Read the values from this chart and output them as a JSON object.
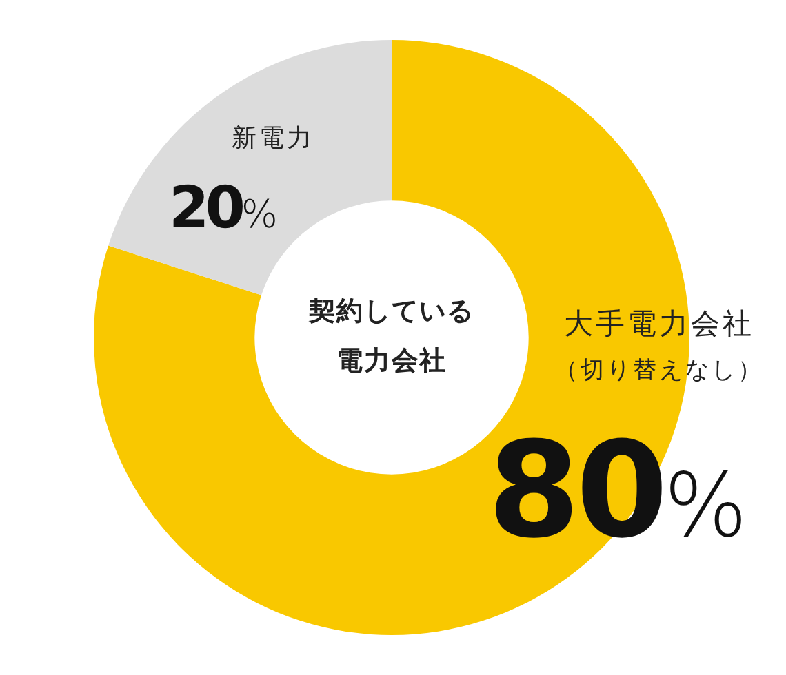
{
  "chart_data": {
    "type": "donut",
    "title": "契約している電力会社",
    "categories": [
      "大手電力会社（切り替えなし）",
      "新電力"
    ],
    "values": [
      80,
      20
    ],
    "colors": [
      "#f9c800",
      "#dcdcdc"
    ],
    "value_labels": [
      "80%",
      "20%"
    ],
    "legend": false
  }
}
